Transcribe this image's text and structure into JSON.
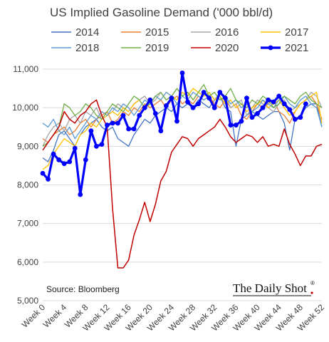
{
  "chart_data": {
    "type": "line",
    "title": "US Implied Gasoline Demand ('000 bbl/d)",
    "source": "Source: Bloomberg",
    "brand": "The Daily Shot",
    "brand_mark": "®",
    "ylim": [
      5000,
      11000
    ],
    "y_ticks": [
      "5,000",
      "6,000",
      "7,000",
      "8,000",
      "9,000",
      "10,000",
      "11,000"
    ],
    "y_tick_values": [
      5000,
      6000,
      7000,
      8000,
      9000,
      10000,
      11000
    ],
    "x_tick_labels": [
      "Week 0",
      "Week 4",
      "Week 8",
      "Week 12",
      "Week 16",
      "Week 20",
      "Week 24",
      "Week 28",
      "Week 32",
      "Week 36",
      "Week 40",
      "Week 44",
      "Week 48",
      "Week 52"
    ],
    "x_tick_values": [
      0,
      4,
      8,
      12,
      16,
      20,
      24,
      28,
      32,
      36,
      40,
      44,
      48,
      52
    ],
    "xlim": [
      0,
      52
    ],
    "grid": true,
    "legend_position": "top",
    "series": [
      {
        "name": "2014",
        "color": "#4472C4",
        "width": 1.3,
        "markers": false,
        "values": [
          8700,
          8600,
          8900,
          9300,
          9400,
          9200,
          9000,
          9300,
          9500,
          9600,
          9700,
          9500,
          9400,
          9500,
          9200,
          9100,
          9000,
          9300,
          9500,
          9700,
          9600,
          9800,
          9900,
          10000,
          9900,
          10100,
          10000,
          10100,
          10000,
          10200,
          10100,
          10000,
          10200,
          10300,
          10000,
          9900,
          9000,
          9700,
          9800,
          9900,
          9800,
          9700,
          9800,
          9900,
          9900,
          9600,
          8900,
          9700,
          9800,
          10000,
          10100,
          10100,
          9500
        ]
      },
      {
        "name": "2015",
        "color": "#ED7D31",
        "width": 1.3,
        "markers": false,
        "values": [
          9200,
          9100,
          9300,
          9400,
          9500,
          9300,
          9400,
          9600,
          9700,
          9500,
          9700,
          9800,
          9900,
          9600,
          9700,
          9900,
          9800,
          10000,
          9900,
          10100,
          10000,
          10100,
          10200,
          10000,
          10200,
          10300,
          10100,
          10200,
          10100,
          10300,
          10200,
          10300,
          10100,
          10000,
          10200,
          10000,
          10100,
          9800,
          9700,
          9900,
          10100,
          10000,
          10100,
          10200,
          9900,
          9800,
          9600,
          9900,
          10100,
          10200,
          10300,
          10100,
          9700
        ]
      },
      {
        "name": "2016",
        "color": "#A5A5A5",
        "width": 1.3,
        "markers": false,
        "values": [
          9000,
          9300,
          9500,
          9600,
          9400,
          9700,
          9800,
          9600,
          9900,
          9800,
          10000,
          9700,
          9800,
          9900,
          10100,
          10000,
          9900,
          10100,
          10200,
          10300,
          10100,
          10200,
          10400,
          10200,
          10300,
          10500,
          10300,
          10400,
          10200,
          10400,
          10300,
          10400,
          10200,
          10400,
          10300,
          10000,
          10100,
          10200,
          9800,
          10000,
          10200,
          10100,
          10000,
          9900,
          10100,
          10200,
          9900,
          10000,
          10100,
          10200,
          10400,
          10300,
          10000
        ]
      },
      {
        "name": "2017",
        "color": "#FFC000",
        "width": 1.3,
        "markers": false,
        "values": [
          8400,
          8500,
          8800,
          9000,
          9200,
          9100,
          9000,
          9300,
          9400,
          9600,
          9500,
          9700,
          9800,
          9900,
          9800,
          10000,
          9900,
          10100,
          10200,
          10000,
          10100,
          10300,
          10200,
          10400,
          10300,
          10200,
          10400,
          10300,
          10500,
          10400,
          10300,
          10400,
          10200,
          10300,
          10100,
          10200,
          10000,
          10100,
          9900,
          10000,
          10100,
          10200,
          10000,
          10100,
          10200,
          10000,
          9800,
          9900,
          10100,
          10200,
          10300,
          10400,
          9600
        ]
      },
      {
        "name": "2018",
        "color": "#5B9BD5",
        "width": 1.3,
        "markers": false,
        "values": [
          9600,
          9500,
          9700,
          9400,
          9300,
          9500,
          9200,
          9400,
          9600,
          9800,
          9700,
          9900,
          9800,
          10000,
          9900,
          10100,
          10000,
          9800,
          10000,
          10200,
          10100,
          10300,
          10200,
          10400,
          10300,
          10100,
          10300,
          10200,
          10400,
          10300,
          10200,
          10300,
          10400,
          10200,
          10300,
          10100,
          10200,
          10000,
          10100,
          9900,
          10000,
          10200,
          10100,
          10000,
          10200,
          10300,
          10100,
          10000,
          10200,
          10300,
          10100,
          10000,
          9500
        ]
      },
      {
        "name": "2019",
        "color": "#70AD47",
        "width": 1.3,
        "markers": false,
        "values": [
          9000,
          9100,
          9300,
          9500,
          10100,
          10000,
          9800,
          9900,
          10100,
          10000,
          9800,
          9700,
          9900,
          10100,
          10000,
          9900,
          10100,
          10300,
          10200,
          10000,
          10100,
          10300,
          10400,
          10200,
          10300,
          10500,
          10300,
          10400,
          10200,
          10400,
          10600,
          10300,
          10400,
          10200,
          10300,
          10500,
          10200,
          10100,
          10000,
          10200,
          10100,
          10300,
          10200,
          10000,
          10100,
          10300,
          10200,
          10100,
          10300,
          10400,
          10200,
          10100,
          10000
        ]
      },
      {
        "name": "2020",
        "color": "#C00000",
        "width": 1.5,
        "markers": false,
        "values": [
          8900,
          9100,
          9300,
          9500,
          9900,
          9700,
          9600,
          9800,
          9900,
          10100,
          10200,
          9800,
          9500,
          7400,
          5850,
          5850,
          6050,
          6700,
          7100,
          7550,
          7050,
          7500,
          8100,
          8350,
          8850,
          9050,
          9250,
          9200,
          9000,
          9200,
          9300,
          9400,
          9500,
          9700,
          9500,
          9250,
          9100,
          9200,
          9300,
          9250,
          9100,
          9250,
          9000,
          9050,
          9000,
          9450,
          9050,
          8800,
          8500,
          8750,
          8750,
          9000,
          9050
        ]
      },
      {
        "name": "2021",
        "color": "#0000FF",
        "width": 3.2,
        "markers": true,
        "values": [
          8300,
          8150,
          8800,
          8650,
          8550,
          8600,
          8950,
          7750,
          8650,
          9400,
          9000,
          9050,
          9550,
          9600,
          9600,
          9800,
          9450,
          9450,
          9800,
          10000,
          10200,
          9850,
          9400,
          10050,
          10250,
          9650,
          10900,
          10150,
          10000,
          10100,
          10400,
          10250,
          10000,
          10400,
          10250,
          9550,
          9550,
          9650,
          10250,
          9750,
          9850,
          10000,
          10200,
          10150,
          10300,
          10100,
          9950,
          9700,
          9750,
          10100
        ]
      }
    ]
  }
}
